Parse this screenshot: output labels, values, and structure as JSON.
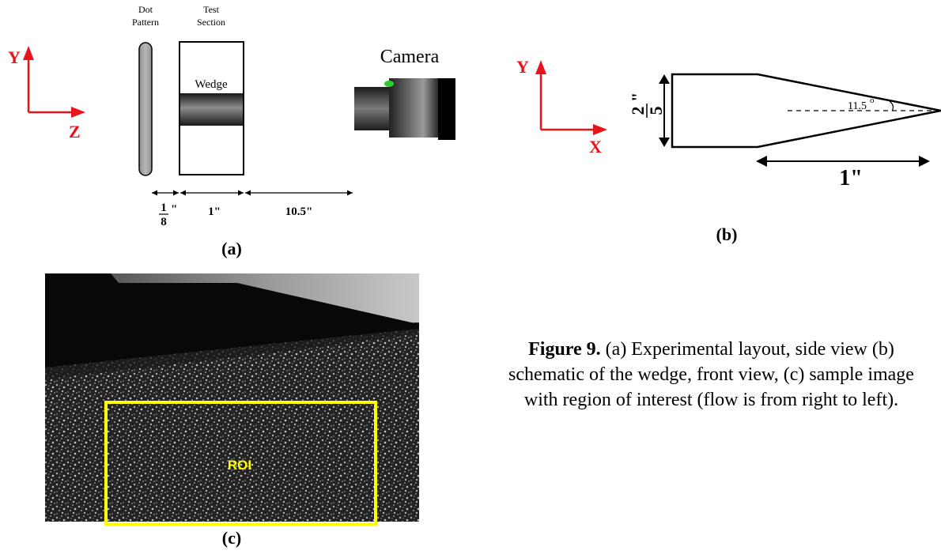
{
  "panel_a": {
    "axes": {
      "vertical": "Y",
      "horizontal": "Z"
    },
    "dot_pattern_label": [
      "Dot",
      "Pattern"
    ],
    "test_section_label": [
      "Test",
      "Section"
    ],
    "wedge_label": "Wedge",
    "camera_label": "Camera",
    "dim_dot": {
      "num": "1",
      "den": "8",
      "unit": "\""
    },
    "dim_section": "1\"",
    "dim_camera": "10.5\"",
    "tag": "(a)"
  },
  "panel_b": {
    "axes": {
      "vertical": "Y",
      "horizontal": "X"
    },
    "height_dim": {
      "num": "2",
      "den": "5",
      "unit": "\""
    },
    "angle": "11.5",
    "angle_unit": "o",
    "length_dim": "1\"",
    "tag": "(b)"
  },
  "panel_c": {
    "roi_label": "ROI",
    "tag": "(c)"
  },
  "caption": {
    "figure": "Figure 9.",
    "text": " (a) Experimental layout, side view (b) schematic of the wedge, front view, (c) sample image with region of interest (flow is from right to left)."
  },
  "colors": {
    "axis_red": "#e8141c",
    "roi_yellow": "#ffff00",
    "camera_green": "#2ecc2e"
  }
}
